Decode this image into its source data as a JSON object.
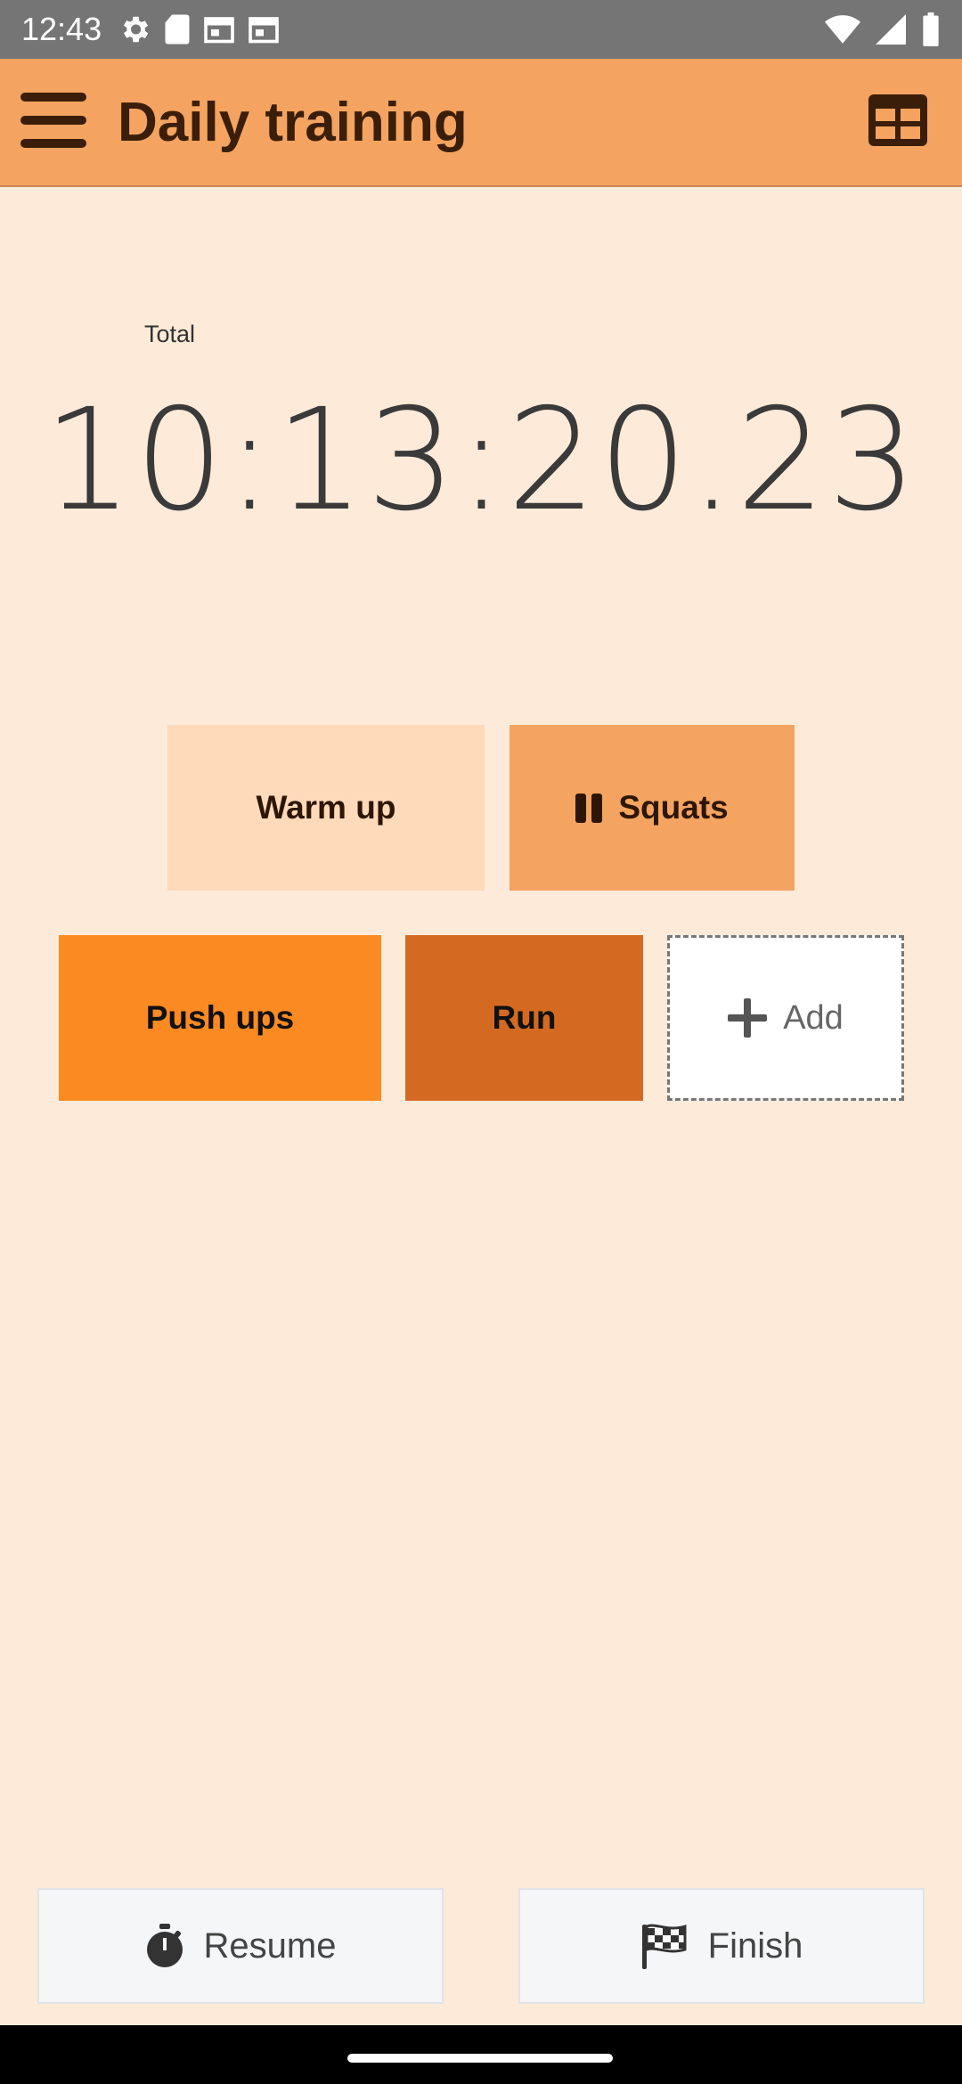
{
  "status_bar": {
    "time": "12:43",
    "icons_left": [
      "settings-icon",
      "sd-card-icon",
      "calendar-icon",
      "calendar-icon"
    ],
    "icons_right": [
      "wifi-icon",
      "signal-icon",
      "battery-icon"
    ]
  },
  "app_bar": {
    "title": "Daily training",
    "menu_icon": "hamburger-menu-icon",
    "view_icon": "table-grid-icon",
    "color": "#F4A460"
  },
  "timer": {
    "label": "Total",
    "value": "10:13:20.23"
  },
  "activities": [
    {
      "label": "Warm up",
      "color": "#FEDABB",
      "state": "idle"
    },
    {
      "label": "Squats",
      "color": "#F4A460",
      "state": "paused",
      "icon": "pause-icon"
    },
    {
      "label": "Push ups",
      "color": "#FB8A22",
      "state": "idle"
    },
    {
      "label": "Run",
      "color": "#D46A22",
      "state": "idle"
    }
  ],
  "add_tile": {
    "label": "Add",
    "icon": "plus-icon"
  },
  "bottom_actions": {
    "resume": {
      "label": "Resume",
      "icon": "stopwatch-icon"
    },
    "finish": {
      "label": "Finish",
      "icon": "checkered-flag-icon"
    }
  }
}
